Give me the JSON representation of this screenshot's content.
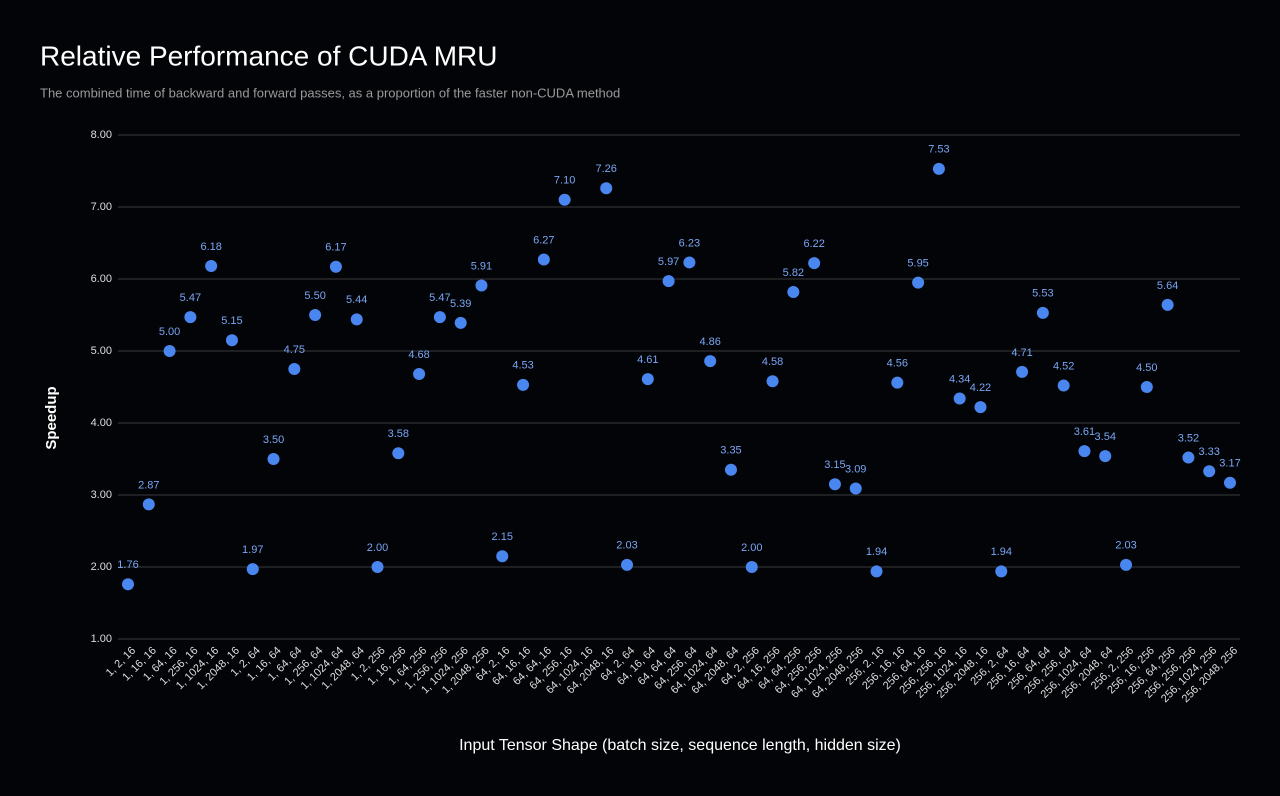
{
  "chart_data": {
    "type": "scatter",
    "title": "Relative Performance of CUDA MRU",
    "subtitle": "The combined time of backward and forward passes, as a proportion of the faster non-CUDA method",
    "x_label": "Input Tensor Shape (batch size, sequence length, hidden size)",
    "y_label": "Speedup",
    "categories": [
      "1, 2, 16",
      "1, 16, 16",
      "1, 64, 16",
      "1, 256, 16",
      "1, 1024, 16",
      "1, 2048, 16",
      "1, 2, 64",
      "1, 16, 64",
      "1, 64, 64",
      "1, 256, 64",
      "1, 1024, 64",
      "1, 2048, 64",
      "1, 2, 256",
      "1, 16, 256",
      "1, 64, 256",
      "1, 256, 256",
      "1, 1024, 256",
      "1, 2048, 256",
      "64, 2, 16",
      "64, 16, 16",
      "64, 64, 16",
      "64, 256, 16",
      "64, 1024, 16",
      "64, 2048, 16",
      "64, 2, 64",
      "64, 16, 64",
      "64, 64, 64",
      "64, 256, 64",
      "64, 1024, 64",
      "64, 2048, 64",
      "64, 2, 256",
      "64, 16, 256",
      "64, 64, 256",
      "64, 256, 256",
      "64, 1024, 256",
      "64, 2048, 256",
      "256, 2, 16",
      "256, 16, 16",
      "256, 64, 16",
      "256, 256, 16",
      "256, 1024, 16",
      "256, 2048, 16",
      "256, 2, 64",
      "256, 16, 64",
      "256, 64, 64",
      "256, 256, 64",
      "256, 1024, 64",
      "256, 2048, 64",
      "256, 2, 256",
      "256, 16, 256",
      "256, 64, 256",
      "256, 256, 256",
      "256, 1024, 256",
      "256, 2048, 256"
    ],
    "values": [
      1.76,
      2.87,
      5.0,
      5.47,
      6.18,
      5.15,
      1.97,
      3.5,
      4.75,
      5.5,
      6.17,
      5.44,
      2.0,
      3.58,
      4.68,
      5.47,
      5.39,
      5.91,
      2.15,
      4.53,
      6.27,
      7.1,
      null,
      7.26,
      2.03,
      4.61,
      5.97,
      6.23,
      4.86,
      3.35,
      2.0,
      4.58,
      5.82,
      6.22,
      3.15,
      3.09,
      1.94,
      4.56,
      5.95,
      7.53,
      4.34,
      4.22,
      1.94,
      4.71,
      5.53,
      4.52,
      3.61,
      3.54,
      2.03,
      4.5,
      5.64,
      3.52,
      3.33,
      3.17
    ],
    "value_labels": [
      "1.76",
      "2.87",
      "5.00",
      "5.47",
      "6.18",
      "5.15",
      "1.97",
      "3.50",
      "4.75",
      "5.50",
      "6.17",
      "5.44",
      "2.00",
      "3.58",
      "4.68",
      "5.47",
      "5.39",
      "5.91",
      "2.15",
      "4.53",
      "6.27",
      "7.10",
      null,
      "7.26",
      "2.03",
      "4.61",
      "5.97",
      "6.23",
      "4.86",
      "3.35",
      "2.00",
      "4.58",
      "5.82",
      "6.22",
      "3.15",
      "3.09",
      "1.94",
      "4.56",
      "5.95",
      "7.53",
      "4.34",
      "4.22",
      "1.94",
      "4.71",
      "5.53",
      "4.52",
      "3.61",
      "3.54",
      "2.03",
      "4.50",
      "5.64",
      "3.52",
      "3.33",
      "3.17"
    ],
    "color": "#4a86f0",
    "ylim": [
      1,
      8
    ],
    "yticks": [
      {
        "value": 1,
        "label": "1.00"
      },
      {
        "value": 2,
        "label": "2.00"
      },
      {
        "value": 3,
        "label": "3.00"
      },
      {
        "value": 4,
        "label": "4.00"
      },
      {
        "value": 5,
        "label": "5.00"
      },
      {
        "value": 6,
        "label": "6.00"
      },
      {
        "value": 7,
        "label": "7.00"
      },
      {
        "value": 8,
        "label": "8.00"
      }
    ],
    "grid": true
  }
}
